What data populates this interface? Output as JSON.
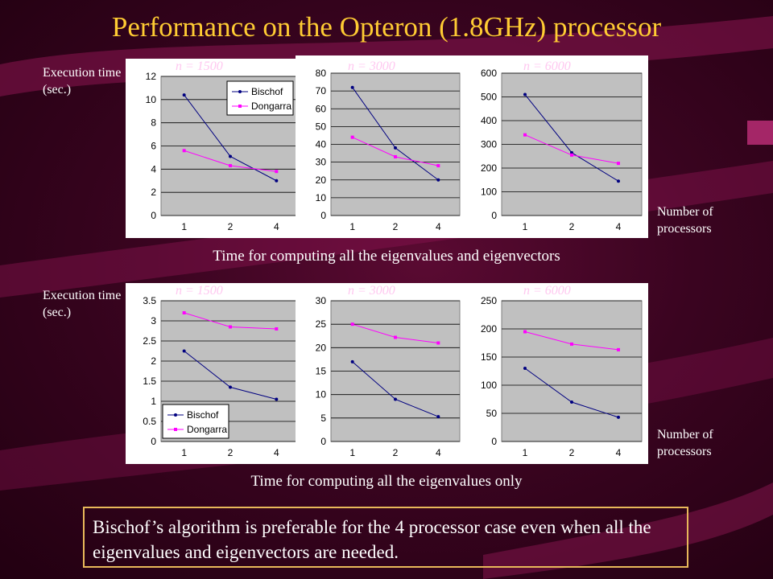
{
  "slide": {
    "title": "Performance on the Opteron (1.8GHz) processor",
    "ylabel_top": "Execution time (sec.)",
    "ylabel_bottom": "Execution time (sec.)",
    "xlabel_top": "Number of processors",
    "xlabel_bottom": "Number of processors",
    "caption_top": "Time for computing all the eigenvalues and eigenvectors",
    "caption_bottom": "Time for computing all the eigenvalues only",
    "note": "Bischof’s algorithm is preferable for the 4 processor case even when all the eigenvalues and eigenvectors are needed.",
    "n_label_prefix": "n"
  },
  "colors": {
    "bischof": "#000080",
    "dongarra": "#ff00ff",
    "plot_bg": "#c0c0c0",
    "title": "#ffcc33"
  },
  "chart_data": [
    {
      "type": "line",
      "title": "n = 1500",
      "n_label": "= 1500",
      "categories": [
        "1",
        "2",
        "4"
      ],
      "ylim": [
        0,
        12
      ],
      "yticks": [
        0,
        2,
        4,
        6,
        8,
        10,
        12
      ],
      "legend": "top-right",
      "grid": true,
      "series": [
        {
          "name": "Bischof",
          "values": [
            10.4,
            5.1,
            3.0
          ]
        },
        {
          "name": "Dongarra",
          "values": [
            5.6,
            4.3,
            3.8
          ]
        }
      ]
    },
    {
      "type": "line",
      "title": "n = 3000",
      "n_label": "= 3000",
      "categories": [
        "1",
        "2",
        "4"
      ],
      "ylim": [
        0,
        80
      ],
      "yticks": [
        0,
        10,
        20,
        30,
        40,
        50,
        60,
        70,
        80
      ],
      "legend": "none",
      "grid": true,
      "series": [
        {
          "name": "Bischof",
          "values": [
            72,
            38,
            20
          ]
        },
        {
          "name": "Dongarra",
          "values": [
            44,
            33,
            28
          ]
        }
      ]
    },
    {
      "type": "line",
      "title": "n = 6000",
      "n_label": "= 6000",
      "categories": [
        "1",
        "2",
        "4"
      ],
      "ylim": [
        0,
        600
      ],
      "yticks": [
        0,
        100,
        200,
        300,
        400,
        500,
        600
      ],
      "legend": "none",
      "grid": true,
      "series": [
        {
          "name": "Bischof",
          "values": [
            510,
            265,
            145
          ]
        },
        {
          "name": "Dongarra",
          "values": [
            340,
            255,
            220
          ]
        }
      ]
    },
    {
      "type": "line",
      "title": "n = 1500",
      "n_label": "= 1500",
      "categories": [
        "1",
        "2",
        "4"
      ],
      "ylim": [
        0,
        3.5
      ],
      "yticks": [
        0,
        0.5,
        1,
        1.5,
        2,
        2.5,
        3,
        3.5
      ],
      "legend": "bottom-left",
      "grid": true,
      "series": [
        {
          "name": "Bischof",
          "values": [
            2.25,
            1.35,
            1.05
          ]
        },
        {
          "name": "Dongarra",
          "values": [
            3.2,
            2.85,
            2.8
          ]
        }
      ]
    },
    {
      "type": "line",
      "title": "n = 3000",
      "n_label": "= 3000",
      "categories": [
        "1",
        "2",
        "4"
      ],
      "ylim": [
        0,
        30
      ],
      "yticks": [
        0,
        5,
        10,
        15,
        20,
        25,
        30
      ],
      "legend": "none",
      "grid": true,
      "series": [
        {
          "name": "Bischof",
          "values": [
            17,
            9,
            5.3
          ]
        },
        {
          "name": "Dongarra",
          "values": [
            25,
            22.2,
            21
          ]
        }
      ]
    },
    {
      "type": "line",
      "title": "n = 6000",
      "n_label": "= 6000",
      "categories": [
        "1",
        "2",
        "4"
      ],
      "ylim": [
        0,
        250
      ],
      "yticks": [
        0,
        50,
        100,
        150,
        200,
        250
      ],
      "legend": "none",
      "grid": true,
      "series": [
        {
          "name": "Bischof",
          "values": [
            130,
            70,
            43
          ]
        },
        {
          "name": "Dongarra",
          "values": [
            195,
            173,
            163
          ]
        }
      ]
    }
  ]
}
